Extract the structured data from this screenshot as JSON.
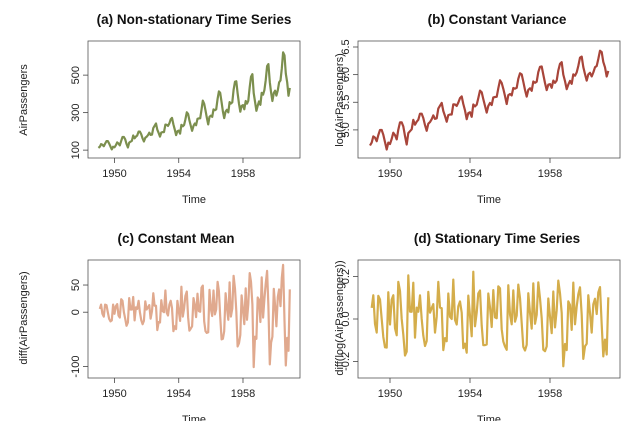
{
  "chart_data": [
    {
      "type": "line",
      "title": "(a) Non-stationary Time Series",
      "xlabel": "Time",
      "ylabel": "AirPassengers",
      "xticks": [
        1950,
        1954,
        1958
      ],
      "yticks": [
        100,
        300,
        500
      ],
      "xlim": [
        1948.6,
        1961.3
      ],
      "ylim": [
        90,
        650
      ],
      "color": "#7c8f4e",
      "series": [
        {
          "x_start": 1949,
          "x_step": 0.08333,
          "values": [
            112,
            118,
            132,
            129,
            121,
            135,
            148,
            148,
            136,
            119,
            104,
            118,
            115,
            126,
            141,
            135,
            125,
            149,
            170,
            170,
            158,
            133,
            114,
            140,
            145,
            150,
            178,
            163,
            172,
            178,
            199,
            199,
            184,
            162,
            146,
            166,
            171,
            180,
            193,
            181,
            183,
            218,
            230,
            242,
            209,
            191,
            172,
            194,
            196,
            196,
            236,
            235,
            229,
            243,
            264,
            272,
            237,
            211,
            180,
            201,
            204,
            188,
            235,
            227,
            234,
            264,
            302,
            293,
            259,
            229,
            203,
            229,
            242,
            233,
            267,
            269,
            270,
            315,
            364,
            347,
            312,
            274,
            237,
            278,
            284,
            277,
            317,
            313,
            318,
            374,
            413,
            405,
            355,
            306,
            271,
            306,
            315,
            301,
            356,
            348,
            355,
            422,
            465,
            467,
            404,
            347,
            305,
            336,
            340,
            318,
            362,
            348,
            363,
            435,
            491,
            505,
            404,
            359,
            310,
            337,
            360,
            342,
            406,
            396,
            420,
            472,
            548,
            559,
            463,
            407,
            362,
            405,
            417,
            391,
            419,
            461,
            472,
            535,
            622,
            606,
            508,
            461,
            390,
            432
          ]
        }
      ]
    },
    {
      "type": "line",
      "title": "(b) Constant Variance",
      "xlabel": "Time",
      "ylabel": "log(AirPassengers)",
      "xticks": [
        1950,
        1954,
        1958
      ],
      "yticks": [
        5.0,
        5.5,
        6.0,
        6.5
      ],
      "ytick_labels": [
        "5.0",
        "5.5",
        "6.0",
        "6.5"
      ],
      "xlim": [
        1948.6,
        1961.3
      ],
      "ylim": [
        4.6,
        6.5
      ],
      "color": "#a8453a",
      "transform_of_a": "log",
      "series": [
        {
          "values_from": "log of series (a)"
        }
      ]
    },
    {
      "type": "line",
      "title": "(c) Constant Mean",
      "xlabel": "Time",
      "ylabel": "diff(AirPassengers)",
      "xticks": [
        1950,
        1954,
        1958
      ],
      "yticks": [
        -100,
        0,
        50
      ],
      "xlim": [
        1948.6,
        1961.3
      ],
      "ylim": [
        -110,
        85
      ],
      "color": "#e0a98e",
      "transform_of_a": "diff",
      "series": [
        {
          "values_from": "first difference of series (a)"
        }
      ]
    },
    {
      "type": "line",
      "title": "(d) Stationary Time Series",
      "xlabel": "Time",
      "ylabel": "diff(log(AirPassengers))",
      "xticks": [
        1950,
        1954,
        1958
      ],
      "yticks": [
        -0.2,
        0.0,
        0.2
      ],
      "ytick_labels": [
        "-0.2",
        "0.0",
        "0.2"
      ],
      "xlim": [
        1948.6,
        1961.3
      ],
      "ylim": [
        -0.25,
        0.25
      ],
      "color": "#d4ad4b",
      "transform_of_a": "difflog",
      "series": [
        {
          "values_from": "first difference of log of series (a)"
        }
      ]
    }
  ]
}
